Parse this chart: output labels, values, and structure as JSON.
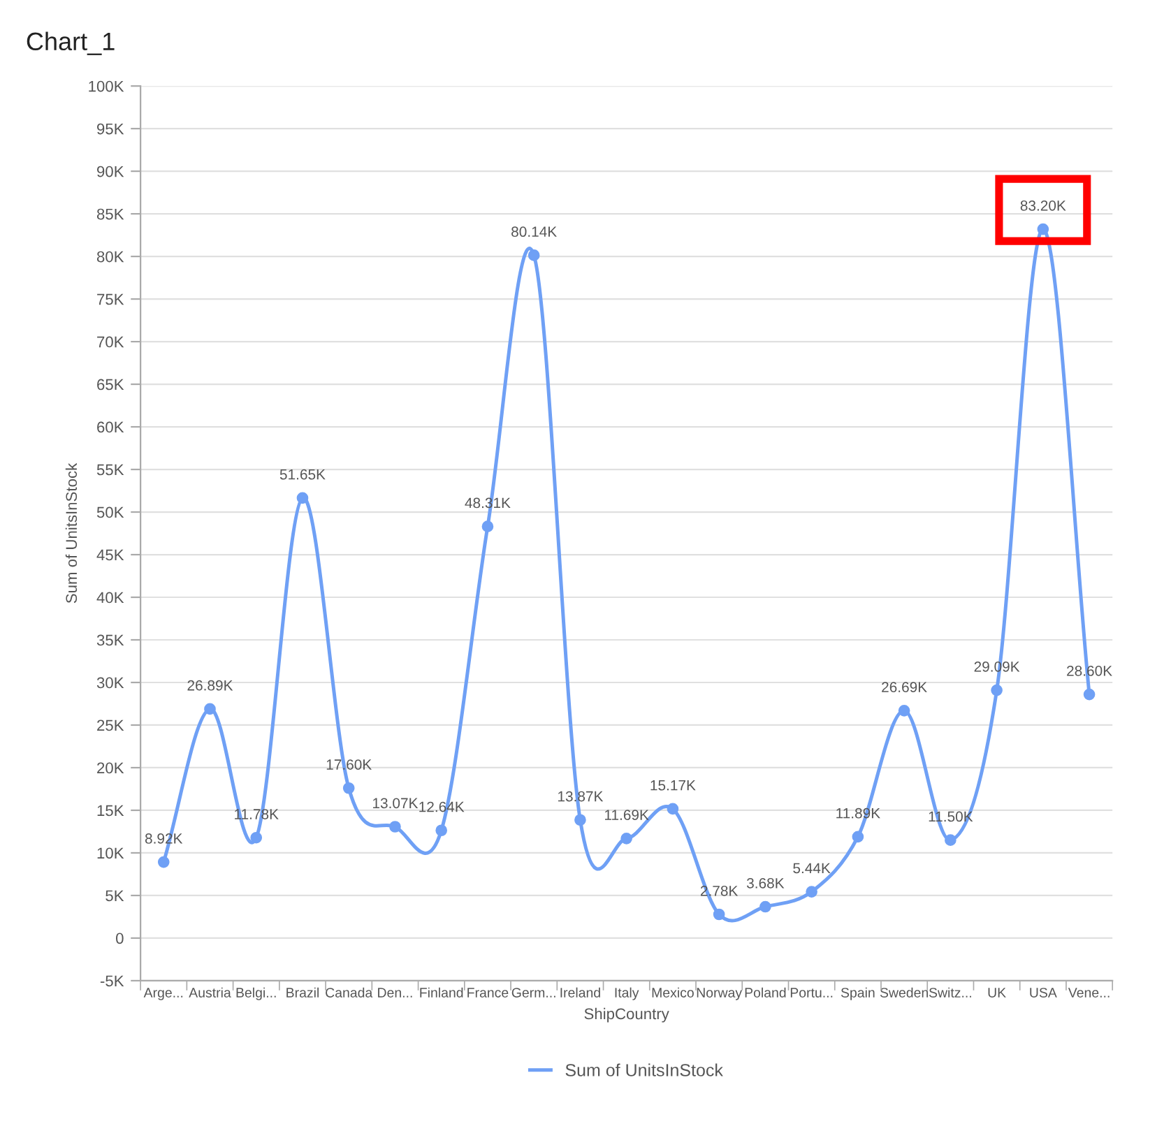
{
  "chart_data": {
    "type": "line",
    "title": "Chart_1",
    "xlabel": "ShipCountry",
    "ylabel": "Sum of UnitsInStock",
    "categories": [
      "Arge...",
      "Austria",
      "Belgi...",
      "Brazil",
      "Canada",
      "Den...",
      "Finland",
      "France",
      "Germ...",
      "Ireland",
      "Italy",
      "Mexico",
      "Norway",
      "Poland",
      "Portu...",
      "Spain",
      "Sweden",
      "Switz...",
      "UK",
      "USA",
      "Vene..."
    ],
    "series": [
      {
        "name": "Sum of UnitsInStock",
        "color": "#6fa0f5",
        "values": [
          8920,
          26890,
          11780,
          51650,
          17600,
          13070,
          12640,
          48310,
          80140,
          13870,
          11690,
          15170,
          2780,
          3680,
          5440,
          11890,
          26690,
          11500,
          29090,
          83200,
          28600
        ],
        "value_labels": [
          "8.92K",
          "26.89K",
          "11.78K",
          "51.65K",
          "17.60K",
          "13.07K",
          "12.64K",
          "48.31K",
          "80.14K",
          "13.87K",
          "11.69K",
          "15.17K",
          "2.78K",
          "3.68K",
          "5.44K",
          "11.89K",
          "26.69K",
          "11.50K",
          "29.09K",
          "83.20K",
          "28.60K"
        ]
      }
    ],
    "ylim": [
      -5000,
      100000
    ],
    "yticks": [
      {
        "value": -5000,
        "label": "-5K"
      },
      0,
      {
        "value": 5000,
        "label": "5K"
      },
      {
        "value": 10000,
        "label": "10K"
      },
      {
        "value": 15000,
        "label": "15K"
      },
      {
        "value": 20000,
        "label": "20K"
      },
      {
        "value": 25000,
        "label": "25K"
      },
      {
        "value": 30000,
        "label": "30K"
      },
      {
        "value": 35000,
        "label": "35K"
      },
      {
        "value": 40000,
        "label": "40K"
      },
      {
        "value": 45000,
        "label": "45K"
      },
      {
        "value": 50000,
        "label": "50K"
      },
      {
        "value": 55000,
        "label": "55K"
      },
      {
        "value": 60000,
        "label": "60K"
      },
      {
        "value": 65000,
        "label": "65K"
      },
      {
        "value": 70000,
        "label": "70K"
      },
      {
        "value": 75000,
        "label": "75K"
      },
      {
        "value": 80000,
        "label": "80K"
      },
      {
        "value": 85000,
        "label": "85K"
      },
      {
        "value": 90000,
        "label": "90K"
      },
      {
        "value": 95000,
        "label": "95K"
      },
      {
        "value": 100000,
        "label": "100K"
      }
    ],
    "grid": "y",
    "legend": "bottom",
    "marker": "circle",
    "line_style": "solid"
  }
}
